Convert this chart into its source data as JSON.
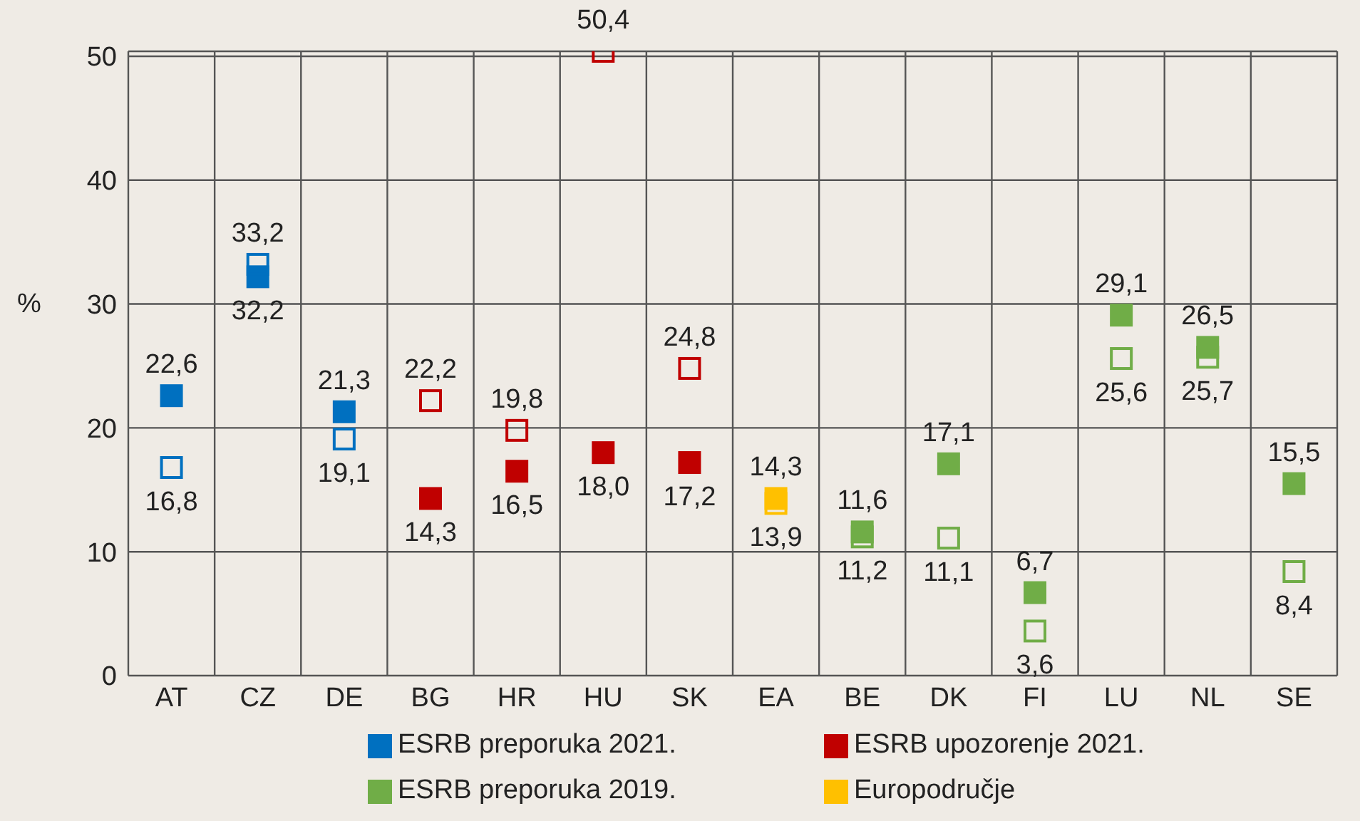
{
  "chart_data": {
    "type": "scatter",
    "ylabel": "%",
    "categories": [
      "AT",
      "CZ",
      "DE",
      "BG",
      "HR",
      "HU",
      "SK",
      "EA",
      "BE",
      "DK",
      "FI",
      "LU",
      "NL",
      "SE"
    ],
    "ylim": [
      0,
      50.4
    ],
    "yticks": [
      0,
      10,
      20,
      30,
      40,
      50
    ],
    "grid": true,
    "legend": "bottom",
    "series": [
      {
        "name": "ESRB preporuka 2021.",
        "color": "#0070c0",
        "marker": "square",
        "values": [
          22.6,
          32.2,
          21.3,
          null,
          null,
          null,
          null,
          null,
          null,
          null,
          null,
          null,
          null,
          null
        ],
        "value_labels": [
          "22,6",
          "32,2",
          "21,3",
          null,
          null,
          null,
          null,
          null,
          null,
          null,
          null,
          null,
          null,
          null
        ]
      },
      {
        "color": "#0070c0",
        "marker": "square-open",
        "values": [
          16.8,
          33.2,
          19.1,
          null,
          null,
          null,
          null,
          null,
          null,
          null,
          null,
          null,
          null,
          null
        ],
        "value_labels": [
          "16,8",
          "33,2",
          "19,1",
          null,
          null,
          null,
          null,
          null,
          null,
          null,
          null,
          null,
          null,
          null
        ]
      },
      {
        "name": "ESRB upozorenje 2021.",
        "color": "#c00000",
        "marker": "square",
        "values": [
          null,
          null,
          null,
          14.3,
          16.5,
          18.0,
          17.2,
          null,
          null,
          null,
          null,
          null,
          null,
          null
        ],
        "value_labels": [
          null,
          null,
          null,
          "14,3",
          "16,5",
          "18,0",
          "17,2",
          null,
          null,
          null,
          null,
          null,
          null,
          null
        ]
      },
      {
        "color": "#c00000",
        "marker": "square-open",
        "values": [
          null,
          null,
          null,
          22.2,
          19.8,
          50.4,
          24.8,
          null,
          null,
          null,
          null,
          null,
          null,
          null
        ],
        "value_labels": [
          null,
          null,
          null,
          "22,2",
          "19,8",
          "50,4",
          "24,8",
          null,
          null,
          null,
          null,
          null,
          null,
          null
        ]
      },
      {
        "name": "ESRB preporuka 2019.",
        "color": "#70ad47",
        "marker": "square",
        "values": [
          null,
          null,
          null,
          null,
          null,
          null,
          null,
          null,
          11.6,
          17.1,
          6.7,
          29.1,
          26.5,
          15.5
        ],
        "value_labels": [
          null,
          null,
          null,
          null,
          null,
          null,
          null,
          null,
          "11,6",
          "17,1",
          "6,7",
          "29,1",
          "26,5",
          "15,5"
        ]
      },
      {
        "color": "#70ad47",
        "marker": "square-open",
        "values": [
          null,
          null,
          null,
          null,
          null,
          null,
          null,
          null,
          11.2,
          11.1,
          3.6,
          25.6,
          25.7,
          8.4
        ],
        "value_labels": [
          null,
          null,
          null,
          null,
          null,
          null,
          null,
          null,
          "11,2",
          "11,1",
          "3,6",
          "25,6",
          "25,7",
          "8,4"
        ]
      },
      {
        "name": "Europodručje",
        "color": "#ffc000",
        "marker": "square",
        "values": [
          null,
          null,
          null,
          null,
          null,
          null,
          null,
          14.3,
          null,
          null,
          null,
          null,
          null,
          null
        ],
        "value_labels": [
          null,
          null,
          null,
          null,
          null,
          null,
          null,
          "14,3",
          null,
          null,
          null,
          null,
          null,
          null
        ]
      },
      {
        "color": "#ffc000",
        "marker": "square-open",
        "values": [
          null,
          null,
          null,
          null,
          null,
          null,
          null,
          13.9,
          null,
          null,
          null,
          null,
          null,
          null
        ],
        "value_labels": [
          null,
          null,
          null,
          null,
          null,
          null,
          null,
          "13,9",
          null,
          null,
          null,
          null,
          null,
          null
        ]
      }
    ]
  }
}
